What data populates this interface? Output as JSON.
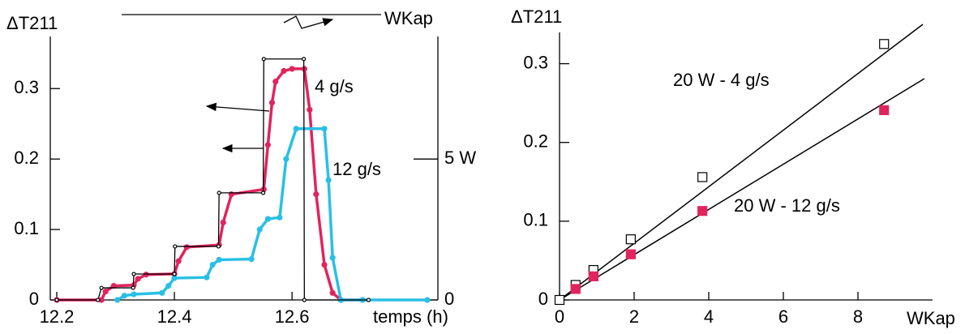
{
  "chart_data": [
    {
      "type": "line",
      "ylabel": "ΔT211",
      "y2label": "WKap",
      "xlabel": "temps (h)",
      "xlim": [
        12.189,
        12.848
      ],
      "xticks": [
        12.2,
        12.4,
        12.6
      ],
      "ylim": [
        0,
        0.405
      ],
      "yticks": [
        0,
        0.1,
        0.2,
        0.3
      ],
      "y2lim": [
        0,
        10.125
      ],
      "y2ticks": [
        0,
        {
          "value": 5,
          "label": "5 W"
        }
      ],
      "series": [
        {
          "name": "4 g/s",
          "color": "#e0245e",
          "x": [
            12.2,
            12.276,
            12.283,
            12.297,
            12.331,
            12.338,
            12.352,
            12.4,
            12.407,
            12.421,
            12.476,
            12.483,
            12.497,
            12.552,
            12.559,
            12.566,
            12.572,
            12.586,
            12.6,
            12.621,
            12.63,
            12.641,
            12.655,
            12.669,
            12.683,
            12.72
          ],
          "values": [
            0,
            0,
            0.012,
            0.02,
            0.021,
            0.03,
            0.036,
            0.037,
            0.055,
            0.075,
            0.078,
            0.11,
            0.15,
            0.157,
            0.22,
            0.28,
            0.31,
            0.325,
            0.328,
            0.328,
            0.27,
            0.15,
            0.05,
            0.01,
            0,
            0
          ]
        },
        {
          "name": "12 g/s",
          "color": "#29bfe6",
          "x": [
            12.303,
            12.315,
            12.331,
            12.379,
            12.39,
            12.4,
            12.455,
            12.465,
            12.476,
            12.531,
            12.545,
            12.559,
            12.579,
            12.59,
            12.607,
            12.655,
            12.662,
            12.669,
            12.683,
            12.72,
            12.83
          ],
          "values": [
            0,
            0.006,
            0.008,
            0.01,
            0.02,
            0.031,
            0.032,
            0.05,
            0.057,
            0.058,
            0.1,
            0.115,
            0.117,
            0.2,
            0.243,
            0.243,
            0.17,
            0.06,
            0,
            0,
            0
          ]
        },
        {
          "color": "#000000",
          "axis": "y2",
          "x": [
            12.2,
            12.27,
            12.276,
            12.33,
            12.331,
            12.4,
            12.401,
            12.475,
            12.476,
            12.551,
            12.552,
            12.62,
            12.621,
            12.73
          ],
          "values": [
            0,
            0,
            0.43,
            0.43,
            0.92,
            0.92,
            1.9,
            1.9,
            3.8,
            3.8,
            8.55,
            8.55,
            0,
            0
          ]
        }
      ]
    },
    {
      "type": "scatter",
      "ylabel": "ΔT211",
      "xlabel": "WKap",
      "xlim": [
        0,
        10
      ],
      "xticks": [
        0,
        2,
        4,
        6,
        8
      ],
      "ylim": [
        0,
        0.35
      ],
      "yticks": [
        0,
        0.1,
        0.2,
        0.3
      ],
      "series": [
        {
          "color": "#000000",
          "marker": "open",
          "x": [
            0,
            0.43,
            0.91,
            1.91,
            3.83,
            8.7
          ],
          "values": [
            0,
            0.019,
            0.038,
            0.077,
            0.156,
            0.325
          ]
        },
        {
          "color": "#e0245e",
          "marker": "filled",
          "x": [
            0.43,
            0.91,
            1.91,
            3.83,
            8.7
          ],
          "values": [
            0.014,
            0.03,
            0.058,
            0.113,
            0.241
          ]
        }
      ],
      "fit_lines": [
        {
          "name": "20 W - 4 g/s",
          "color": "#000000",
          "x": [
            0,
            9.74
          ],
          "values": [
            0,
            0.35
          ]
        },
        {
          "name": "20 W - 12 g/s",
          "color": "#000000",
          "x": [
            0,
            9.78
          ],
          "values": [
            0,
            0.281
          ]
        }
      ]
    }
  ]
}
